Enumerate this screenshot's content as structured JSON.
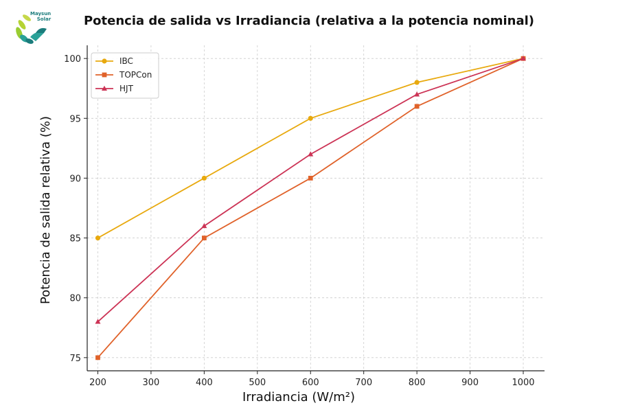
{
  "logo": {
    "brand_line1": "Maysun",
    "brand_line2": "Solar",
    "icon": "leaf-sun-logo-icon",
    "colors": [
      "#9acd32",
      "#1b7c7c",
      "#2aa198"
    ]
  },
  "chart_data": {
    "type": "line",
    "title": "Potencia de salida vs Irradiancia (relativa a la potencia nominal)",
    "xlabel": "Irradiancia (W/m²)",
    "ylabel": "Potencia de salida relativa (%)",
    "xlim": [
      180,
      1040
    ],
    "ylim": [
      73.9,
      101.1
    ],
    "xticks": [
      200,
      300,
      400,
      500,
      600,
      700,
      800,
      900,
      1000
    ],
    "yticks": [
      75,
      80,
      85,
      90,
      95,
      100
    ],
    "grid": true,
    "legend_position": "top-left",
    "series": [
      {
        "name": "IBC",
        "color": "#e8a90e",
        "marker": "circle",
        "x": [
          200,
          400,
          600,
          800,
          1000
        ],
        "y": [
          85,
          90,
          95,
          98,
          100
        ]
      },
      {
        "name": "TOPCon",
        "color": "#e0622a",
        "marker": "square",
        "x": [
          200,
          400,
          600,
          800,
          1000
        ],
        "y": [
          75,
          85,
          90,
          96,
          100
        ]
      },
      {
        "name": "HJT",
        "color": "#cc3355",
        "marker": "triangle",
        "x": [
          200,
          400,
          600,
          800,
          1000
        ],
        "y": [
          78,
          86,
          92,
          97,
          100
        ]
      }
    ]
  }
}
